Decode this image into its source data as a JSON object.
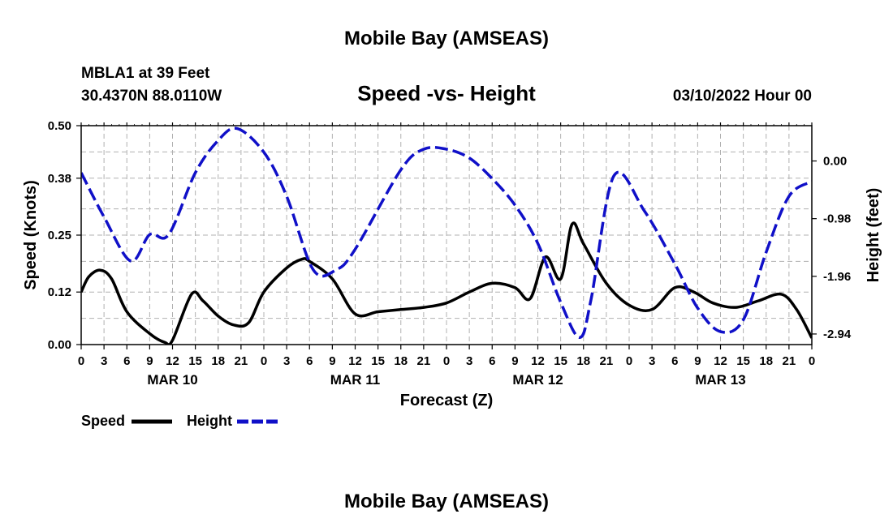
{
  "header": {
    "title": "Mobile Bay (AMSEAS)",
    "station": "MBLA1 at 39 Feet",
    "coordinates": "30.4370N  88.0110W",
    "timestamp": "03/10/2022 Hour 00"
  },
  "footer": {
    "title": "Mobile Bay (AMSEAS)"
  },
  "legend": {
    "speed_label": "Speed",
    "height_label": "Height"
  },
  "colors": {
    "speed": "#000000",
    "height": "#1010c8",
    "grid": "#b0b0b0"
  },
  "chart_data": {
    "type": "line",
    "title": "Speed -vs- Height",
    "xlabel": "Forecast (Z)",
    "ylabel_left": "Speed (Knots)",
    "ylabel_right": "Height (feet)",
    "xlim": [
      0,
      96
    ],
    "ylim_left": [
      0,
      0.5
    ],
    "ylim_right": [
      -3.12,
      0.6
    ],
    "x_ticks": [
      0,
      3,
      6,
      9,
      12,
      15,
      18,
      21,
      24,
      27,
      30,
      33,
      36,
      39,
      42,
      45,
      48,
      51,
      54,
      57,
      60,
      63,
      66,
      69,
      72,
      75,
      78,
      81,
      84,
      87,
      90,
      93,
      96
    ],
    "x_tick_labels": [
      "0",
      "3",
      "6",
      "9",
      "12",
      "15",
      "18",
      "21",
      "0",
      "3",
      "6",
      "9",
      "12",
      "15",
      "18",
      "21",
      "0",
      "3",
      "6",
      "9",
      "12",
      "15",
      "18",
      "21",
      "0",
      "3",
      "6",
      "9",
      "12",
      "15",
      "18",
      "21",
      "0"
    ],
    "day_labels": [
      {
        "hour": 12,
        "label": "MAR 10"
      },
      {
        "hour": 36,
        "label": "MAR 11"
      },
      {
        "hour": 60,
        "label": "MAR 12"
      },
      {
        "hour": 84,
        "label": "MAR 13"
      }
    ],
    "y_left_ticks": [
      0.0,
      0.12,
      0.25,
      0.38,
      0.5
    ],
    "y_left_tick_labels": [
      "0.00",
      "0.12",
      "0.25",
      "0.38",
      "0.50"
    ],
    "y_right_ticks": [
      0.0,
      -0.98,
      -1.96,
      -2.94
    ],
    "y_right_tick_labels": [
      "0.00",
      "-0.98",
      "-1.96",
      "-2.94"
    ],
    "series": [
      {
        "name": "Speed",
        "axis": "left",
        "style": "solid",
        "x": [
          0,
          1,
          2.5,
          4,
          6,
          9,
          11,
          12,
          14.5,
          16,
          18,
          20,
          22,
          24,
          27,
          29,
          30,
          33,
          36,
          39,
          42,
          45,
          48,
          51,
          54,
          57,
          59,
          61,
          63,
          64.5,
          66,
          69,
          72,
          75,
          78,
          80.5,
          83,
          86,
          89,
          92,
          94,
          96
        ],
        "values": [
          0.12,
          0.155,
          0.17,
          0.15,
          0.075,
          0.025,
          0.005,
          0.01,
          0.115,
          0.1,
          0.065,
          0.045,
          0.05,
          0.12,
          0.175,
          0.195,
          0.19,
          0.15,
          0.07,
          0.075,
          0.08,
          0.085,
          0.095,
          0.12,
          0.14,
          0.13,
          0.105,
          0.2,
          0.15,
          0.275,
          0.23,
          0.14,
          0.09,
          0.08,
          0.13,
          0.12,
          0.095,
          0.085,
          0.1,
          0.115,
          0.08,
          0.015
        ]
      },
      {
        "name": "Height",
        "axis": "right",
        "style": "dashed",
        "x": [
          0,
          3,
          6.5,
          9,
          11.5,
          15,
          18,
          20.5,
          24,
          27,
          30.5,
          33.5,
          36,
          42,
          45,
          48,
          51,
          54,
          57,
          60,
          63,
          65.5,
          67,
          70,
          74,
          78,
          81,
          84,
          87,
          90,
          93,
          96
        ],
        "values": [
          -0.2,
          -0.95,
          -1.7,
          -1.25,
          -1.25,
          -0.2,
          0.35,
          0.55,
          0.15,
          -0.6,
          -1.85,
          -1.85,
          -1.5,
          -0.15,
          0.2,
          0.2,
          0.05,
          -0.3,
          -0.75,
          -1.4,
          -2.4,
          -3.0,
          -2.35,
          -0.25,
          -0.85,
          -1.75,
          -2.5,
          -2.9,
          -2.7,
          -1.55,
          -0.6,
          -0.35
        ]
      }
    ]
  }
}
